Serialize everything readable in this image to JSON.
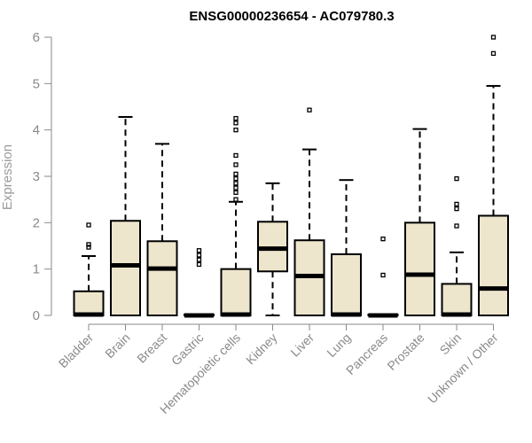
{
  "chart_data": {
    "type": "boxplot",
    "title": "ENSG00000236654 - AC079780.3",
    "xlabel": "",
    "ylabel": "Expression",
    "ylim": [
      0,
      6
    ],
    "yticks": [
      0,
      1,
      2,
      3,
      4,
      5,
      6
    ],
    "grid": false,
    "colors": {
      "box_fill": "#ede6cd",
      "box_stroke": "#000000",
      "axis": "#8a8a8a"
    },
    "categories": [
      "Bladder",
      "Brain",
      "Breast",
      "Gastric",
      "Hematopoietic cells",
      "Kidney",
      "Liver",
      "Lung",
      "Pancreas",
      "Prostate",
      "Skin",
      "Unknown / Other"
    ],
    "boxes": [
      {
        "category": "Bladder",
        "whisker_low": 0,
        "q1": 0,
        "median": 0.02,
        "q3": 0.52,
        "whisker_high": 1.28,
        "outliers": [
          1.47,
          1.53,
          1.95
        ]
      },
      {
        "category": "Brain",
        "whisker_low": 0,
        "q1": 0,
        "median": 1.08,
        "q3": 2.04,
        "whisker_high": 4.28,
        "outliers": []
      },
      {
        "category": "Breast",
        "whisker_low": 0,
        "q1": 0,
        "median": 1.01,
        "q3": 1.6,
        "whisker_high": 3.7,
        "outliers": []
      },
      {
        "category": "Gastric",
        "whisker_low": 0,
        "q1": 0,
        "median": 0,
        "q3": 0.02,
        "whisker_high": 0.02,
        "outliers": [
          1.1,
          1.2,
          1.3,
          1.4
        ]
      },
      {
        "category": "Hematopoietic cells",
        "whisker_low": 0,
        "q1": 0,
        "median": 0.02,
        "q3": 1.0,
        "whisker_high": 2.45,
        "outliers": [
          2.5,
          2.65,
          2.75,
          2.85,
          2.95,
          3.05,
          3.25,
          3.45,
          4.0,
          4.15,
          4.25
        ]
      },
      {
        "category": "Kidney",
        "whisker_low": 0,
        "q1": 0.95,
        "median": 1.44,
        "q3": 2.02,
        "whisker_high": 2.85,
        "outliers": []
      },
      {
        "category": "Liver",
        "whisker_low": 0,
        "q1": 0,
        "median": 0.85,
        "q3": 1.62,
        "whisker_high": 3.58,
        "outliers": [
          4.43
        ]
      },
      {
        "category": "Lung",
        "whisker_low": 0,
        "q1": 0,
        "median": 0.02,
        "q3": 1.32,
        "whisker_high": 2.92,
        "outliers": []
      },
      {
        "category": "Pancreas",
        "whisker_low": 0,
        "q1": 0,
        "median": 0,
        "q3": 0.02,
        "whisker_high": 0.02,
        "outliers": [
          0.87,
          1.65
        ]
      },
      {
        "category": "Prostate",
        "whisker_low": 0,
        "q1": 0,
        "median": 0.88,
        "q3": 2.0,
        "whisker_high": 4.02,
        "outliers": []
      },
      {
        "category": "Skin",
        "whisker_low": 0,
        "q1": 0,
        "median": 0.02,
        "q3": 0.68,
        "whisker_high": 1.36,
        "outliers": [
          1.93,
          2.3,
          2.4,
          2.95
        ]
      },
      {
        "category": "Unknown / Other",
        "whisker_low": 0,
        "q1": 0,
        "median": 0.58,
        "q3": 2.15,
        "whisker_high": 4.95,
        "outliers": [
          5.65,
          6.0
        ]
      }
    ]
  }
}
